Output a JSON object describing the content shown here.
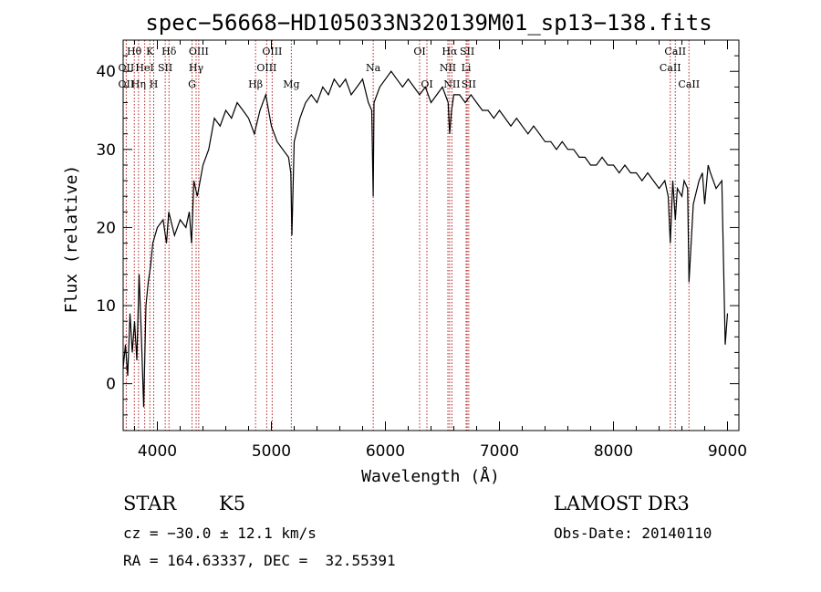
{
  "chart_data": {
    "type": "line",
    "title": "spec−56668−HD105033N320139M01_sp13−138.fits",
    "xlabel": "Wavelength (Å)",
    "ylabel": "Flux (relative)",
    "xlim": [
      3700,
      9100
    ],
    "ylim": [
      -6,
      44
    ],
    "xticks": [
      4000,
      5000,
      6000,
      7000,
      8000,
      9000
    ],
    "yticks": [
      0,
      10,
      20,
      30,
      40
    ],
    "series": [
      {
        "name": "flux",
        "x": [
          3700,
          3720,
          3740,
          3760,
          3780,
          3800,
          3820,
          3840,
          3860,
          3880,
          3900,
          3920,
          3940,
          3960,
          3980,
          4000,
          4050,
          4080,
          4100,
          4150,
          4200,
          4250,
          4280,
          4300,
          4320,
          4350,
          4400,
          4450,
          4500,
          4550,
          4600,
          4650,
          4700,
          4750,
          4800,
          4850,
          4900,
          4950,
          5000,
          5050,
          5100,
          5150,
          5170,
          5180,
          5200,
          5250,
          5300,
          5350,
          5400,
          5450,
          5500,
          5550,
          5600,
          5650,
          5700,
          5750,
          5800,
          5850,
          5880,
          5893,
          5900,
          5950,
          6000,
          6050,
          6100,
          6150,
          6200,
          6250,
          6300,
          6350,
          6400,
          6450,
          6500,
          6550,
          6563,
          6580,
          6600,
          6650,
          6700,
          6750,
          6800,
          6850,
          6900,
          6950,
          7000,
          7050,
          7100,
          7150,
          7200,
          7250,
          7300,
          7350,
          7400,
          7450,
          7500,
          7550,
          7600,
          7650,
          7700,
          7750,
          7800,
          7850,
          7900,
          7950,
          8000,
          8050,
          8100,
          8150,
          8200,
          8250,
          8300,
          8350,
          8400,
          8450,
          8480,
          8498,
          8520,
          8542,
          8560,
          8600,
          8620,
          8650,
          8662,
          8700,
          8750,
          8780,
          8800,
          8830,
          8850,
          8900,
          8950,
          8980,
          9000
        ],
        "y": [
          2,
          5,
          1,
          9,
          4,
          8,
          3,
          14,
          6,
          -3,
          10,
          13,
          15,
          18,
          19,
          20,
          21,
          18,
          22,
          19,
          21,
          20,
          22,
          18,
          26,
          24,
          28,
          30,
          34,
          33,
          35,
          34,
          36,
          35,
          34,
          32,
          35,
          37,
          33,
          31,
          30,
          29,
          27,
          19,
          31,
          34,
          36,
          37,
          36,
          38,
          37,
          39,
          38,
          39,
          37,
          38,
          39,
          36,
          35,
          24,
          36,
          38,
          39,
          40,
          39,
          38,
          39,
          38,
          37,
          38,
          36,
          37,
          38,
          36,
          32,
          35,
          37,
          37,
          36,
          37,
          36,
          35,
          35,
          34,
          35,
          34,
          33,
          34,
          33,
          32,
          33,
          32,
          31,
          31,
          30,
          31,
          30,
          30,
          29,
          29,
          28,
          28,
          29,
          28,
          28,
          27,
          28,
          27,
          27,
          26,
          27,
          26,
          25,
          26,
          24,
          18,
          26,
          21,
          25,
          24,
          26,
          25,
          13,
          23,
          26,
          27,
          23,
          28,
          27,
          25,
          26,
          5,
          9
        ]
      }
    ],
    "lines": [
      {
        "name": "O II",
        "x": 3727
      },
      {
        "name": "Hθ",
        "x": 3798
      },
      {
        "name": "Hη",
        "x": 3835
      },
      {
        "name": "He I",
        "x": 3889
      },
      {
        "name": "K",
        "x": 3934
      },
      {
        "name": "H",
        "x": 3968
      },
      {
        "name": "S II",
        "x": 4069
      },
      {
        "name": "Hδ",
        "x": 4102
      },
      {
        "name": "G",
        "x": 4304
      },
      {
        "name": "Hγ",
        "x": 4340
      },
      {
        "name": "O III",
        "x": 4363
      },
      {
        "name": "Hβ",
        "x": 4861
      },
      {
        "name": "O III",
        "x": 4959
      },
      {
        "name": "O III",
        "x": 5007
      },
      {
        "name": "Mg",
        "x": 5175
      },
      {
        "name": "Na",
        "x": 5893
      },
      {
        "name": "O I",
        "x": 6300
      },
      {
        "name": "O I",
        "x": 6364
      },
      {
        "name": "N II",
        "x": 6548
      },
      {
        "name": "Hα",
        "x": 6563
      },
      {
        "name": "N II",
        "x": 6583
      },
      {
        "name": "Li",
        "x": 6708
      },
      {
        "name": "S II",
        "x": 6717
      },
      {
        "name": "S II",
        "x": 6731
      },
      {
        "name": "Ca II",
        "x": 8498
      },
      {
        "name": "Ca II",
        "x": 8542
      },
      {
        "name": "Ca II",
        "x": 8662
      }
    ],
    "line_labels": [
      {
        "text": "Hθ",
        "row": 1,
        "x": 3797
      },
      {
        "text": "K",
        "row": 1,
        "x": 3934
      },
      {
        "text": "Hδ",
        "row": 1,
        "x": 4102
      },
      {
        "text": "OIII",
        "row": 1,
        "x": 4363
      },
      {
        "text": "OIII",
        "row": 1,
        "x": 5007
      },
      {
        "text": "OI",
        "row": 1,
        "x": 6300
      },
      {
        "text": "Hα",
        "row": 1,
        "x": 6563
      },
      {
        "text": "SII",
        "row": 1,
        "x": 6717
      },
      {
        "text": "CaII",
        "row": 1,
        "x": 8542
      },
      {
        "text": "OII",
        "row": 2,
        "x": 3727
      },
      {
        "text": "HeI",
        "row": 2,
        "x": 3889
      },
      {
        "text": "SII",
        "row": 2,
        "x": 4069
      },
      {
        "text": "Hγ",
        "row": 2,
        "x": 4340
      },
      {
        "text": "OIII",
        "row": 2,
        "x": 4959
      },
      {
        "text": "Na",
        "row": 2,
        "x": 5893
      },
      {
        "text": "NII",
        "row": 2,
        "x": 6548
      },
      {
        "text": "Li",
        "row": 2,
        "x": 6708
      },
      {
        "text": "CaII",
        "row": 2,
        "x": 8498
      },
      {
        "text": "OII",
        "row": 3,
        "x": 3727
      },
      {
        "text": "Hη",
        "row": 3,
        "x": 3835
      },
      {
        "text": "H",
        "row": 3,
        "x": 3968
      },
      {
        "text": "G",
        "row": 3,
        "x": 4304
      },
      {
        "text": "Hβ",
        "row": 3,
        "x": 4861
      },
      {
        "text": "Mg",
        "row": 3,
        "x": 5175
      },
      {
        "text": "OI",
        "row": 3,
        "x": 6364
      },
      {
        "text": "NII",
        "row": 3,
        "x": 6583
      },
      {
        "text": "SII",
        "row": 3,
        "x": 6731
      },
      {
        "text": "CaII",
        "row": 3,
        "x": 8662
      }
    ],
    "colors": {
      "spectrum": "#000000",
      "lines": "#b22222",
      "axes": "#000000"
    }
  },
  "info": {
    "class": "STAR",
    "subclass": "K5",
    "survey": "LAMOST DR3",
    "redshift": "cz = −30.0 ± 12.1 km/s",
    "obs_date": "Obs-Date: 20140110",
    "coords": "RA = 164.63337, DEC =  32.55391"
  }
}
